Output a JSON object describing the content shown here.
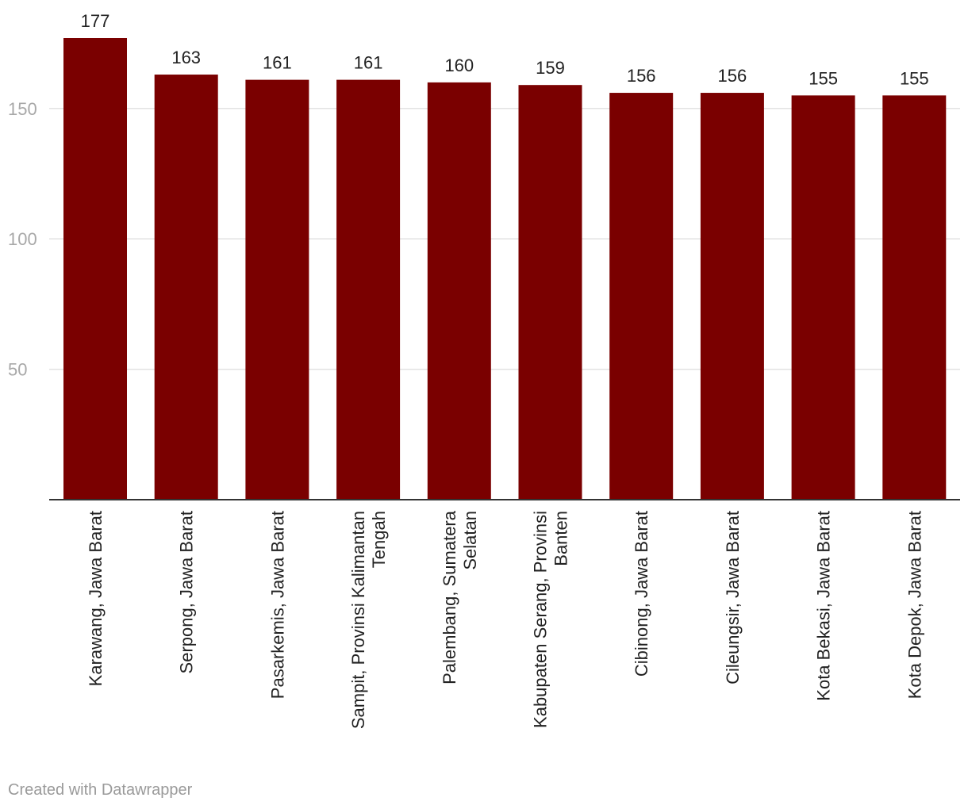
{
  "chart_data": {
    "type": "bar",
    "categories": [
      "Karawang, Jawa Barat",
      "Serpong, Jawa Barat",
      "Pasarkemis, Jawa Barat",
      "Sampit, Provinsi Kalimantan Tengah",
      "Palembang, Sumatera Selatan",
      "Kabupaten Serang, Provinsi Banten",
      "Cibinong, Jawa Barat",
      "Cileungsir, Jawa Barat",
      "Kota Bekasi, Jawa Barat",
      "Kota Depok, Jawa Barat"
    ],
    "category_label_lines": [
      [
        "Karawang, Jawa Barat"
      ],
      [
        "Serpong, Jawa Barat"
      ],
      [
        "Pasarkemis, Jawa Barat"
      ],
      [
        "Sampit, Provinsi Kalimantan",
        "Tengah"
      ],
      [
        "Palembang, Sumatera",
        "Selatan"
      ],
      [
        "Kabupaten Serang, Provinsi",
        "Banten"
      ],
      [
        "Cibinong, Jawa Barat"
      ],
      [
        "Cileungsir, Jawa Barat"
      ],
      [
        "Kota Bekasi, Jawa Barat"
      ],
      [
        "Kota Depok, Jawa Barat"
      ]
    ],
    "values": [
      177,
      163,
      161,
      161,
      160,
      159,
      156,
      156,
      155,
      155
    ],
    "title": "",
    "xlabel": "",
    "ylabel": "",
    "ylim": [
      0,
      177
    ],
    "yticks": [
      50,
      100,
      150
    ],
    "grid": true,
    "bar_color": "#7a0000",
    "value_labels": true
  },
  "footer": {
    "credit": "Created with Datawrapper"
  }
}
